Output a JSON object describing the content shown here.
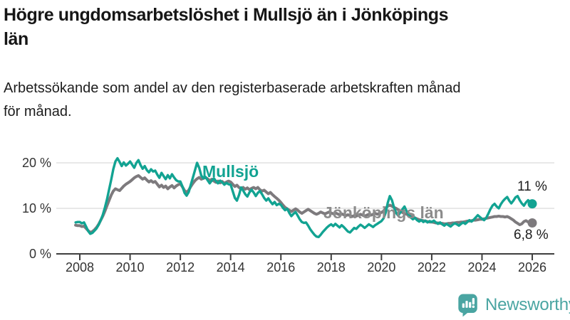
{
  "header": {
    "title_lines": [
      "Högre ungdomsarbetslöshet i Mullsjö än i Jönköpings",
      "län"
    ],
    "subtitle_lines": [
      "Arbetssökande som andel av den registerbaserade arbetskraften månad",
      "för månad."
    ]
  },
  "chart_data": {
    "type": "line",
    "title": "Högre ungdomsarbetslöshet i Mullsjö än i Jönköpings län",
    "subtitle": "Arbetssökande som andel av den registerbaserade arbetskraften månad för månad.",
    "unit": "%",
    "grid": "horizontal",
    "legend_position": "inline-labels",
    "x_start": {
      "year": 2007,
      "month": 11
    },
    "x_step_months": 1,
    "xlim": [
      2007.6,
      2026.9
    ],
    "ylim": [
      0,
      22
    ],
    "x_ticks": [
      {
        "value": 2008,
        "label": "2008"
      },
      {
        "value": 2010,
        "label": "2010"
      },
      {
        "value": 2012,
        "label": "2012"
      },
      {
        "value": 2014,
        "label": "2014"
      },
      {
        "value": 2016,
        "label": "2016"
      },
      {
        "value": 2018,
        "label": "2018"
      },
      {
        "value": 2020,
        "label": "2020"
      },
      {
        "value": 2022,
        "label": "2022"
      },
      {
        "value": 2024,
        "label": "2024"
      },
      {
        "value": 2026,
        "label": "2026"
      }
    ],
    "y_ticks": [
      {
        "value": 0,
        "label": "0 %"
      },
      {
        "value": 10,
        "label": "10 %"
      },
      {
        "value": 20,
        "label": "20 %"
      }
    ],
    "colors": {
      "axis": "#3f3f3f",
      "gridline": "#d9d9d9",
      "tick_label": "#333333",
      "end_label": "#1c1c1c"
    },
    "series": [
      {
        "name": "Mullsjö",
        "color": "#12a392",
        "label_color": "#12a392",
        "end_label": "11 %",
        "end_value": 11.0,
        "values": [
          6.9,
          7.0,
          7.0,
          6.7,
          6.9,
          6.0,
          5.0,
          4.4,
          4.6,
          5.1,
          5.6,
          6.4,
          7.4,
          8.6,
          10.2,
          12.0,
          14.2,
          16.3,
          18.6,
          20.3,
          21.0,
          20.2,
          19.3,
          20.1,
          19.4,
          19.8,
          20.3,
          19.6,
          18.9,
          20.0,
          20.6,
          19.5,
          18.7,
          19.3,
          18.4,
          17.9,
          18.6,
          18.1,
          18.3,
          17.4,
          16.7,
          17.8,
          17.1,
          16.4,
          17.3,
          16.6,
          17.5,
          16.8,
          16.2,
          15.9,
          15.9,
          14.8,
          13.4,
          12.8,
          13.6,
          15.2,
          16.8,
          18.4,
          20.0,
          18.9,
          17.2,
          16.6,
          16.9,
          16.2,
          15.5,
          16.1,
          16.6,
          16.0,
          15.5,
          16.1,
          15.7,
          15.2,
          15.6,
          15.3,
          15.2,
          13.8,
          12.3,
          11.7,
          12.9,
          14.6,
          13.9,
          13.1,
          12.6,
          13.5,
          14.1,
          13.5,
          12.7,
          13.4,
          13.8,
          13.1,
          12.3,
          11.7,
          12.2,
          11.5,
          10.9,
          11.4,
          10.7,
          11.0,
          10.8,
          10.1,
          9.6,
          9.9,
          9.0,
          8.3,
          8.8,
          9.2,
          8.4,
          7.6,
          7.0,
          6.8,
          6.9,
          6.2,
          5.4,
          4.8,
          4.2,
          3.8,
          3.7,
          4.2,
          4.8,
          5.3,
          5.8,
          6.2,
          6.5,
          6.1,
          6.6,
          6.2,
          5.8,
          6.3,
          5.9,
          5.4,
          4.9,
          4.7,
          5.2,
          5.7,
          5.5,
          6.0,
          6.4,
          6.1,
          5.7,
          6.1,
          6.5,
          6.2,
          5.9,
          6.3,
          6.6,
          6.9,
          7.2,
          7.8,
          9.0,
          11.2,
          12.7,
          11.8,
          10.2,
          9.0,
          8.4,
          9.1,
          9.8,
          10.4,
          9.4,
          8.6,
          8.0,
          7.6,
          7.9,
          7.4,
          7.1,
          7.4,
          7.0,
          7.3,
          6.9,
          7.2,
          7.0,
          7.3,
          6.9,
          6.6,
          6.9,
          6.5,
          6.2,
          6.6,
          6.3,
          6.0,
          6.4,
          6.7,
          6.5,
          6.2,
          6.6,
          6.9,
          6.6,
          7.0,
          7.4,
          7.1,
          7.5,
          8.0,
          8.5,
          8.1,
          7.7,
          7.4,
          7.9,
          8.8,
          9.8,
          10.6,
          11.0,
          10.4,
          10.0,
          10.9,
          11.6,
          12.1,
          12.5,
          11.7,
          11.1,
          11.7,
          12.4,
          12.7,
          11.8,
          11.1,
          10.6,
          11.3,
          11.8,
          11.3,
          11.0
        ]
      },
      {
        "name": "Jönköpings län",
        "color": "#7d7a7d",
        "label_color": "#8c8c8c",
        "end_label": "6,8 %",
        "end_value": 6.8,
        "values": [
          6.3,
          6.2,
          6.2,
          6.0,
          6.1,
          5.6,
          5.1,
          4.7,
          4.9,
          5.3,
          5.8,
          6.5,
          7.4,
          8.3,
          9.4,
          10.6,
          11.8,
          12.9,
          13.8,
          14.3,
          14.1,
          13.9,
          14.4,
          14.9,
          15.3,
          15.6,
          15.9,
          16.3,
          16.7,
          17.0,
          17.2,
          16.8,
          16.4,
          16.7,
          16.2,
          15.8,
          16.1,
          15.7,
          15.9,
          15.3,
          14.7,
          15.1,
          14.6,
          14.9,
          14.3,
          14.7,
          15.0,
          14.5,
          14.9,
          15.2,
          15.4,
          14.7,
          13.9,
          13.5,
          14.0,
          14.8,
          15.5,
          16.1,
          16.5,
          16.8,
          16.4,
          16.6,
          16.8,
          16.5,
          16.1,
          16.4,
          16.0,
          15.7,
          16.0,
          15.6,
          15.9,
          15.5,
          15.8,
          16.0,
          15.8,
          15.3,
          14.8,
          15.1,
          14.6,
          14.3,
          14.6,
          14.2,
          14.5,
          14.1,
          14.4,
          14.6,
          14.3,
          14.6,
          14.1,
          13.8,
          14.0,
          13.6,
          13.2,
          13.5,
          13.0,
          12.6,
          12.2,
          11.8,
          11.3,
          10.7,
          10.2,
          9.9,
          9.6,
          9.3,
          9.6,
          9.9,
          9.6,
          9.2,
          8.9,
          9.2,
          9.5,
          9.8,
          9.5,
          9.2,
          8.9,
          8.7,
          8.9,
          9.2,
          9.0,
          8.8,
          9.0,
          9.2,
          9.0,
          8.8,
          9.0,
          8.8,
          8.6,
          8.8,
          8.6,
          8.4,
          8.6,
          8.4,
          8.2,
          8.4,
          8.3,
          8.5,
          8.7,
          8.5,
          8.3,
          8.5,
          8.7,
          8.5,
          8.7,
          8.9,
          8.7,
          8.9,
          9.1,
          9.4,
          10.0,
          10.5,
          10.7,
          10.5,
          10.2,
          10.0,
          9.7,
          9.4,
          9.1,
          8.9,
          8.7,
          8.5,
          8.3,
          8.1,
          7.9,
          7.7,
          7.5,
          7.4,
          7.3,
          7.2,
          7.1,
          7.0,
          7.0,
          6.9,
          6.8,
          6.8,
          6.7,
          6.7,
          6.6,
          6.6,
          6.7,
          6.7,
          6.8,
          6.8,
          6.9,
          6.9,
          7.0,
          7.0,
          7.1,
          7.2,
          7.2,
          7.3,
          7.4,
          7.4,
          7.5,
          7.6,
          7.6,
          7.7,
          7.8,
          7.9,
          8.0,
          8.1,
          8.2,
          8.2,
          8.3,
          8.2,
          8.2,
          8.1,
          8.2,
          8.0,
          7.7,
          7.4,
          7.0,
          6.7,
          6.4,
          6.6,
          7.1,
          7.3,
          7.0,
          6.9,
          6.8
        ]
      }
    ]
  },
  "footer": {
    "brand": "Newsworthy",
    "brand_color": "#4aa5a2",
    "logo_icon": "bar-chart-speech-bubble-icon"
  }
}
